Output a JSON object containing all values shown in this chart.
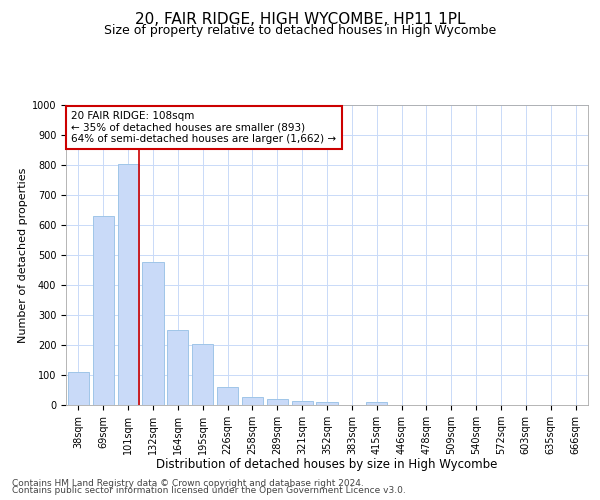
{
  "title1": "20, FAIR RIDGE, HIGH WYCOMBE, HP11 1PL",
  "title2": "Size of property relative to detached houses in High Wycombe",
  "xlabel": "Distribution of detached houses by size in High Wycombe",
  "ylabel": "Number of detached properties",
  "bar_labels": [
    "38sqm",
    "69sqm",
    "101sqm",
    "132sqm",
    "164sqm",
    "195sqm",
    "226sqm",
    "258sqm",
    "289sqm",
    "321sqm",
    "352sqm",
    "383sqm",
    "415sqm",
    "446sqm",
    "478sqm",
    "509sqm",
    "540sqm",
    "572sqm",
    "603sqm",
    "635sqm",
    "666sqm"
  ],
  "bar_values": [
    110,
    630,
    805,
    478,
    250,
    205,
    60,
    27,
    20,
    15,
    10,
    0,
    10,
    0,
    0,
    0,
    0,
    0,
    0,
    0,
    0
  ],
  "bar_color": "#c9daf8",
  "bar_edge_color": "#9fc5e8",
  "vline_x": 2.0,
  "vline_color": "#cc0000",
  "annotation_text": "20 FAIR RIDGE: 108sqm\n← 35% of detached houses are smaller (893)\n64% of semi-detached houses are larger (1,662) →",
  "annotation_box_color": "#ffffff",
  "annotation_box_edge": "#cc0000",
  "ylim": [
    0,
    1000
  ],
  "yticks": [
    0,
    100,
    200,
    300,
    400,
    500,
    600,
    700,
    800,
    900,
    1000
  ],
  "footer1": "Contains HM Land Registry data © Crown copyright and database right 2024.",
  "footer2": "Contains public sector information licensed under the Open Government Licence v3.0.",
  "bg_color": "#ffffff",
  "grid_color": "#c9daf8",
  "title1_fontsize": 11,
  "title2_fontsize": 9,
  "xlabel_fontsize": 8.5,
  "ylabel_fontsize": 8,
  "tick_fontsize": 7,
  "footer_fontsize": 6.5,
  "annot_fontsize": 7.5
}
